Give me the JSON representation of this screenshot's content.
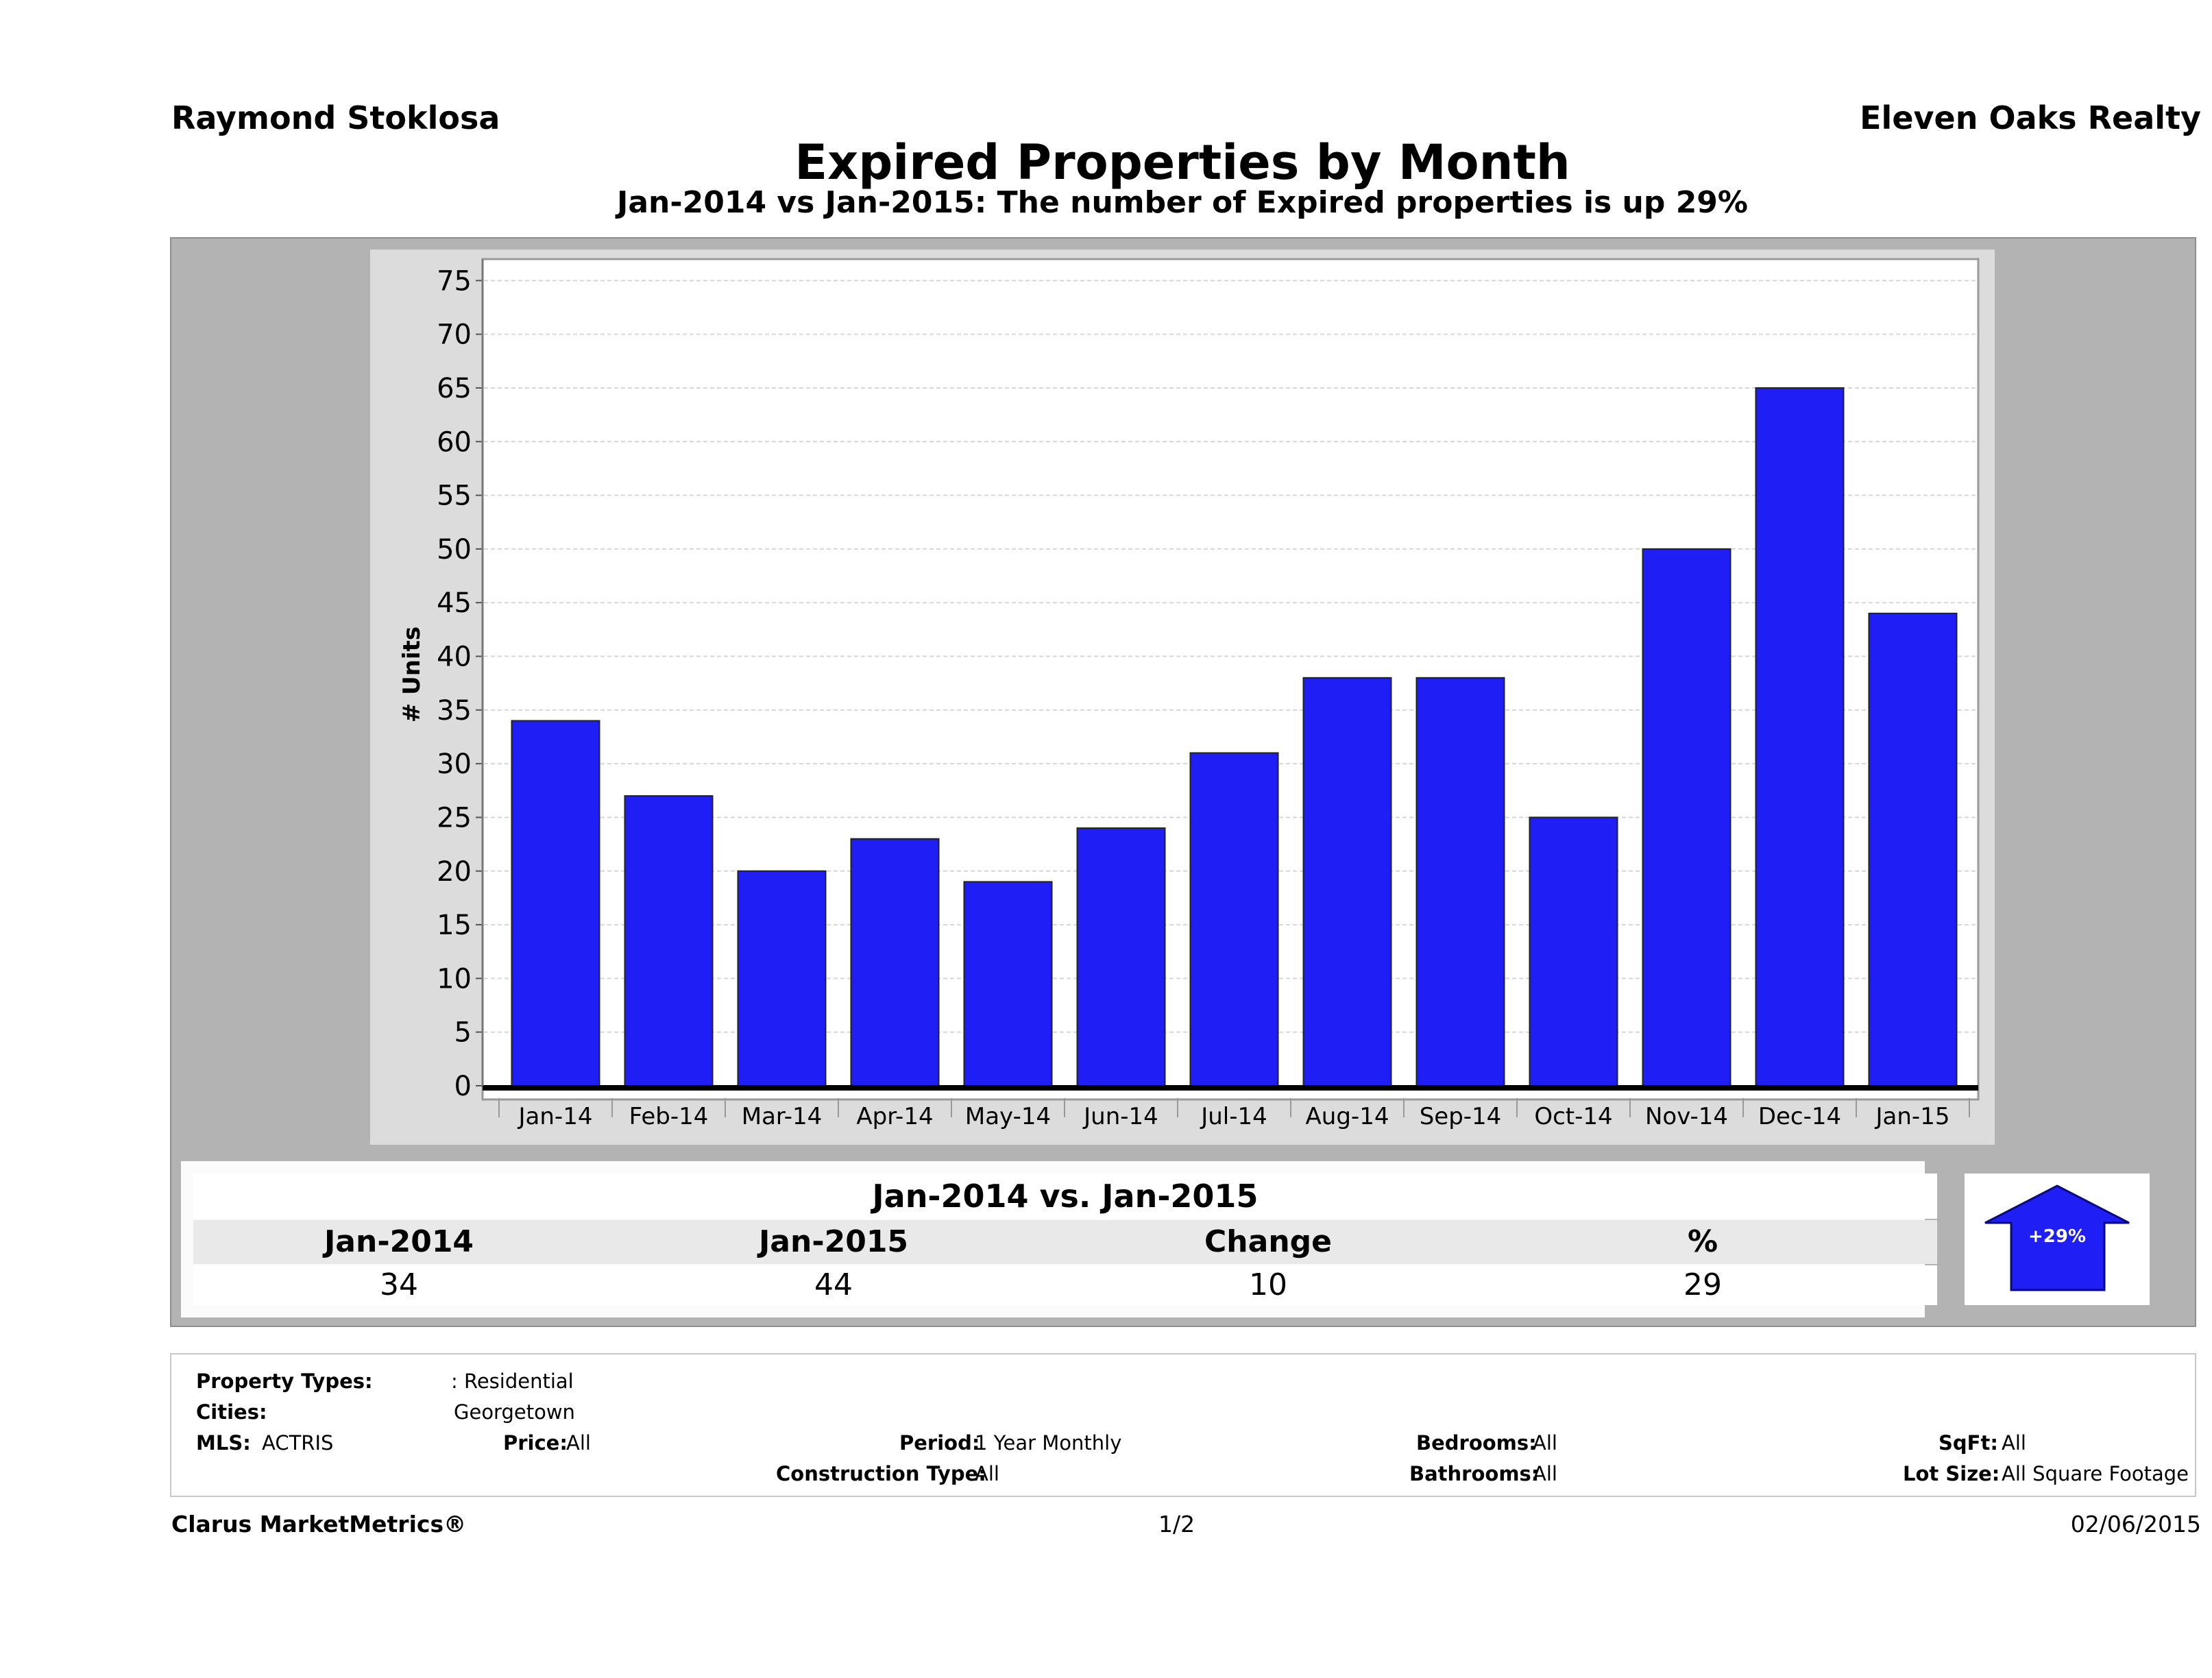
{
  "header": {
    "agent": "Raymond Stoklosa",
    "company": "Eleven Oaks Realty",
    "title": "Expired Properties by Month",
    "subtitle": "Jan-2014 vs Jan-2015: The number of Expired  properties is up 29%"
  },
  "chart_data": {
    "type": "bar",
    "categories": [
      "Jan-14",
      "Feb-14",
      "Mar-14",
      "Apr-14",
      "May-14",
      "Jun-14",
      "Jul-14",
      "Aug-14",
      "Sep-14",
      "Oct-14",
      "Nov-14",
      "Dec-14",
      "Jan-15"
    ],
    "values": [
      34,
      27,
      20,
      23,
      19,
      24,
      31,
      38,
      38,
      25,
      50,
      65,
      44
    ],
    "ylabel": "# Units",
    "xlabel": "",
    "ylim": [
      0,
      77
    ],
    "yticks": [
      0,
      5,
      10,
      15,
      20,
      25,
      30,
      35,
      40,
      45,
      50,
      55,
      60,
      65,
      70,
      75
    ],
    "grid": true,
    "bar_color": "#1f1ff5"
  },
  "summary": {
    "title": "Jan-2014 vs. Jan-2015",
    "headers": [
      "Jan-2014",
      "Jan-2015",
      "Change",
      "%"
    ],
    "values": [
      "34",
      "44",
      "10",
      "29"
    ],
    "badge": "+29%",
    "badge_direction": "up",
    "badge_color": "#1f1ff5"
  },
  "filters": {
    "property_types_label": "Property Types:",
    "property_types_value": ": Residential",
    "cities_label": "Cities:",
    "cities_value": "Georgetown",
    "mls_label": "MLS:",
    "mls_value": "ACTRIS",
    "price_label": "Price:",
    "price_value": "All",
    "period_label": "Period:",
    "period_value": "1 Year Monthly",
    "construction_label": "Construction Type:",
    "construction_value": "All",
    "bedrooms_label": "Bedrooms:",
    "bedrooms_value": "All",
    "bathrooms_label": "Bathrooms:",
    "bathrooms_value": "All",
    "sqft_label": "SqFt:",
    "sqft_value": "All",
    "lotsize_label": "Lot Size:",
    "lotsize_value": "All Square Footage"
  },
  "footer": {
    "brand": "Clarus MarketMetrics®",
    "page": "1/2",
    "date": "02/06/2015"
  }
}
